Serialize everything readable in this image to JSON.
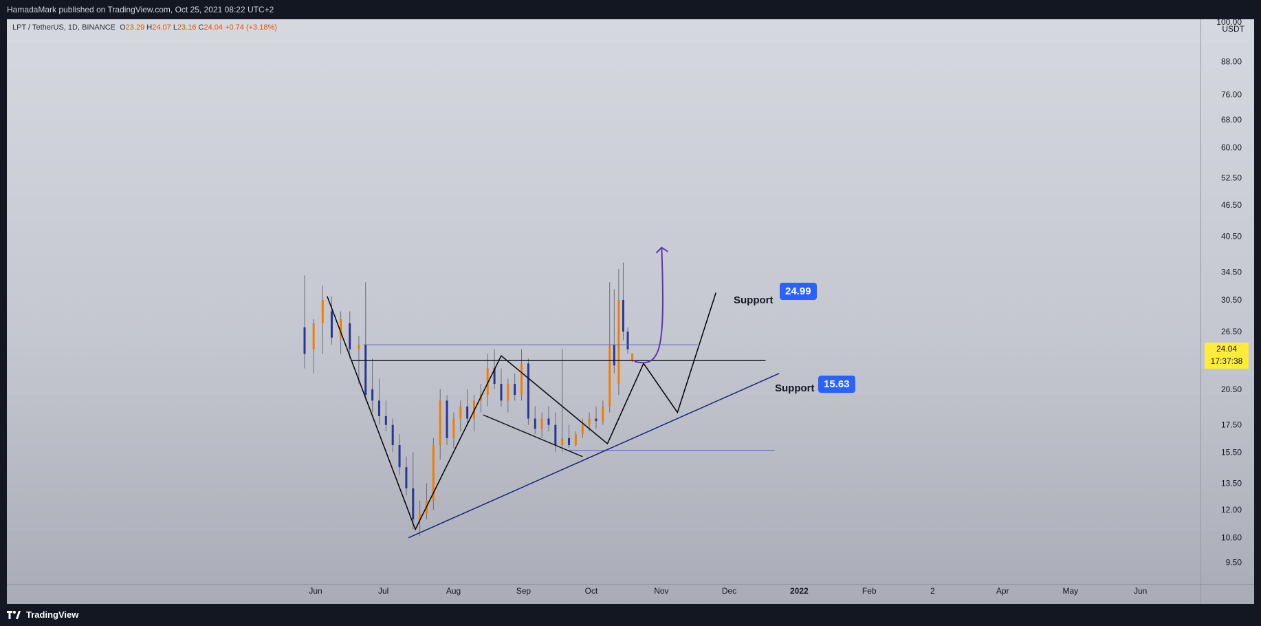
{
  "header": {
    "publisher": "HamadaMark published on TradingView.com, Oct 25, 2021 08:22 UTC+2"
  },
  "symbol": {
    "name": "LPT / TetherUS, 1D, BINANCE",
    "open_label": "O",
    "open": "23.29",
    "high_label": "H",
    "high": "24.07",
    "low_label": "L",
    "low": "23.16",
    "close_label": "C",
    "close": "24.04",
    "change": "+0.74 (+3.18%)"
  },
  "price_axis": {
    "currency": "USDT",
    "top_partial": "100.00",
    "ticks": [
      "88.00",
      "76.00",
      "68.00",
      "60.00",
      "52.50",
      "46.50",
      "40.50",
      "34.50",
      "30.50",
      "26.50",
      "20.50",
      "17.50",
      "15.50",
      "13.50",
      "12.00",
      "10.60",
      "9.50"
    ],
    "current_price": "24.04",
    "countdown": "17:37:38"
  },
  "time_axis": {
    "ticks": [
      "Jun",
      "Jul",
      "Aug",
      "Sep",
      "Oct",
      "Nov",
      "Dec",
      "2022",
      "Feb",
      "2",
      "Apr",
      "May",
      "Jun"
    ]
  },
  "annotations": {
    "resistance_value": "24.99",
    "support_value": "15.63",
    "support_label_1": "Support",
    "support_label_2": "Support"
  },
  "footer": {
    "brand": "TradingView"
  },
  "colors": {
    "up_candle": "#f57c00",
    "down_candle": "#283593",
    "label_blue": "#2962ff",
    "arrow_purple": "#5e35b1",
    "current_price_bg": "#ffeb3b"
  },
  "chart_data": {
    "type": "candlestick",
    "scale": "log",
    "ylim": [
      9.2,
      103
    ],
    "x_range": [
      "2021-05-25",
      "2022-06-30"
    ],
    "candles": [
      {
        "date": "2021-06-01",
        "o": 27.0,
        "h": 34.0,
        "l": 22.5,
        "c": 24.0
      },
      {
        "date": "2021-06-05",
        "o": 24.5,
        "h": 28.0,
        "l": 22.0,
        "c": 27.5
      },
      {
        "date": "2021-06-09",
        "o": 27.5,
        "h": 32.5,
        "l": 24.0,
        "c": 30.5
      },
      {
        "date": "2021-06-13",
        "o": 29.0,
        "h": 31.0,
        "l": 25.0,
        "c": 25.8
      },
      {
        "date": "2021-06-17",
        "o": 25.8,
        "h": 29.0,
        "l": 24.0,
        "c": 28.0
      },
      {
        "date": "2021-06-21",
        "o": 27.5,
        "h": 29.0,
        "l": 23.5,
        "c": 24.5
      },
      {
        "date": "2021-06-25",
        "o": 24.5,
        "h": 26.0,
        "l": 21.0,
        "c": 25.0
      },
      {
        "date": "2021-06-28",
        "o": 25.0,
        "h": 33.0,
        "l": 19.5,
        "c": 20.0
      },
      {
        "date": "2021-07-01",
        "o": 20.5,
        "h": 23.5,
        "l": 18.5,
        "c": 19.5
      },
      {
        "date": "2021-07-04",
        "o": 19.5,
        "h": 21.5,
        "l": 17.5,
        "c": 18.2
      },
      {
        "date": "2021-07-07",
        "o": 18.2,
        "h": 19.5,
        "l": 17.0,
        "c": 17.5
      },
      {
        "date": "2021-07-10",
        "o": 17.5,
        "h": 18.0,
        "l": 15.5,
        "c": 16.0
      },
      {
        "date": "2021-07-13",
        "o": 16.0,
        "h": 16.8,
        "l": 14.0,
        "c": 14.5
      },
      {
        "date": "2021-07-16",
        "o": 14.5,
        "h": 15.2,
        "l": 12.8,
        "c": 13.2
      },
      {
        "date": "2021-07-19",
        "o": 13.2,
        "h": 15.5,
        "l": 11.0,
        "c": 11.5
      },
      {
        "date": "2021-07-22",
        "o": 11.5,
        "h": 12.5,
        "l": 10.7,
        "c": 11.8
      },
      {
        "date": "2021-07-25",
        "o": 11.8,
        "h": 13.5,
        "l": 11.5,
        "c": 12.5
      },
      {
        "date": "2021-07-28",
        "o": 12.5,
        "h": 16.5,
        "l": 12.0,
        "c": 16.0
      },
      {
        "date": "2021-07-31",
        "o": 16.0,
        "h": 20.5,
        "l": 15.0,
        "c": 19.5
      },
      {
        "date": "2021-08-03",
        "o": 19.5,
        "h": 20.0,
        "l": 16.0,
        "c": 16.5
      },
      {
        "date": "2021-08-06",
        "o": 16.5,
        "h": 18.5,
        "l": 15.8,
        "c": 18.0
      },
      {
        "date": "2021-08-09",
        "o": 18.0,
        "h": 19.5,
        "l": 17.0,
        "c": 19.0
      },
      {
        "date": "2021-08-12",
        "o": 19.0,
        "h": 20.5,
        "l": 17.5,
        "c": 18.0
      },
      {
        "date": "2021-08-15",
        "o": 18.0,
        "h": 20.0,
        "l": 17.0,
        "c": 19.5
      },
      {
        "date": "2021-08-18",
        "o": 19.5,
        "h": 21.0,
        "l": 18.5,
        "c": 20.0
      },
      {
        "date": "2021-08-21",
        "o": 20.0,
        "h": 24.0,
        "l": 19.0,
        "c": 22.5
      },
      {
        "date": "2021-08-24",
        "o": 22.5,
        "h": 24.5,
        "l": 20.5,
        "c": 21.0
      },
      {
        "date": "2021-08-27",
        "o": 21.0,
        "h": 22.5,
        "l": 19.0,
        "c": 19.5
      },
      {
        "date": "2021-08-30",
        "o": 19.5,
        "h": 21.5,
        "l": 18.5,
        "c": 21.0
      },
      {
        "date": "2021-09-02",
        "o": 21.0,
        "h": 22.0,
        "l": 19.5,
        "c": 20.0
      },
      {
        "date": "2021-09-05",
        "o": 20.0,
        "h": 24.5,
        "l": 19.5,
        "c": 23.0
      },
      {
        "date": "2021-09-08",
        "o": 23.0,
        "h": 23.5,
        "l": 17.5,
        "c": 18.0
      },
      {
        "date": "2021-09-11",
        "o": 18.0,
        "h": 19.0,
        "l": 16.8,
        "c": 17.2
      },
      {
        "date": "2021-09-14",
        "o": 17.2,
        "h": 18.5,
        "l": 16.5,
        "c": 18.0
      },
      {
        "date": "2021-09-17",
        "o": 18.0,
        "h": 19.0,
        "l": 17.0,
        "c": 17.5
      },
      {
        "date": "2021-09-20",
        "o": 17.5,
        "h": 18.5,
        "l": 15.5,
        "c": 16.0
      },
      {
        "date": "2021-09-23",
        "o": 16.0,
        "h": 24.5,
        "l": 15.5,
        "c": 16.5
      },
      {
        "date": "2021-09-26",
        "o": 16.5,
        "h": 17.5,
        "l": 15.8,
        "c": 16.0
      },
      {
        "date": "2021-09-29",
        "o": 16.0,
        "h": 17.0,
        "l": 15.9,
        "c": 16.8
      },
      {
        "date": "2021-10-02",
        "o": 16.8,
        "h": 18.0,
        "l": 16.5,
        "c": 17.5
      },
      {
        "date": "2021-10-05",
        "o": 17.5,
        "h": 18.5,
        "l": 17.0,
        "c": 18.0
      },
      {
        "date": "2021-10-08",
        "o": 18.0,
        "h": 19.0,
        "l": 17.2,
        "c": 17.8
      },
      {
        "date": "2021-10-11",
        "o": 17.8,
        "h": 19.5,
        "l": 17.5,
        "c": 19.0
      },
      {
        "date": "2021-10-14",
        "o": 19.0,
        "h": 33.0,
        "l": 18.5,
        "c": 25.0
      },
      {
        "date": "2021-10-16",
        "o": 25.0,
        "h": 32.0,
        "l": 22.0,
        "c": 22.8
      },
      {
        "date": "2021-10-18",
        "o": 21.0,
        "h": 35.0,
        "l": 20.0,
        "c": 30.5
      },
      {
        "date": "2021-10-20",
        "o": 30.5,
        "h": 36.0,
        "l": 25.5,
        "c": 26.5
      },
      {
        "date": "2021-10-22",
        "o": 26.5,
        "h": 27.0,
        "l": 24.0,
        "c": 24.5
      },
      {
        "date": "2021-10-24",
        "o": 23.29,
        "h": 24.07,
        "l": 23.16,
        "c": 24.04
      }
    ]
  }
}
